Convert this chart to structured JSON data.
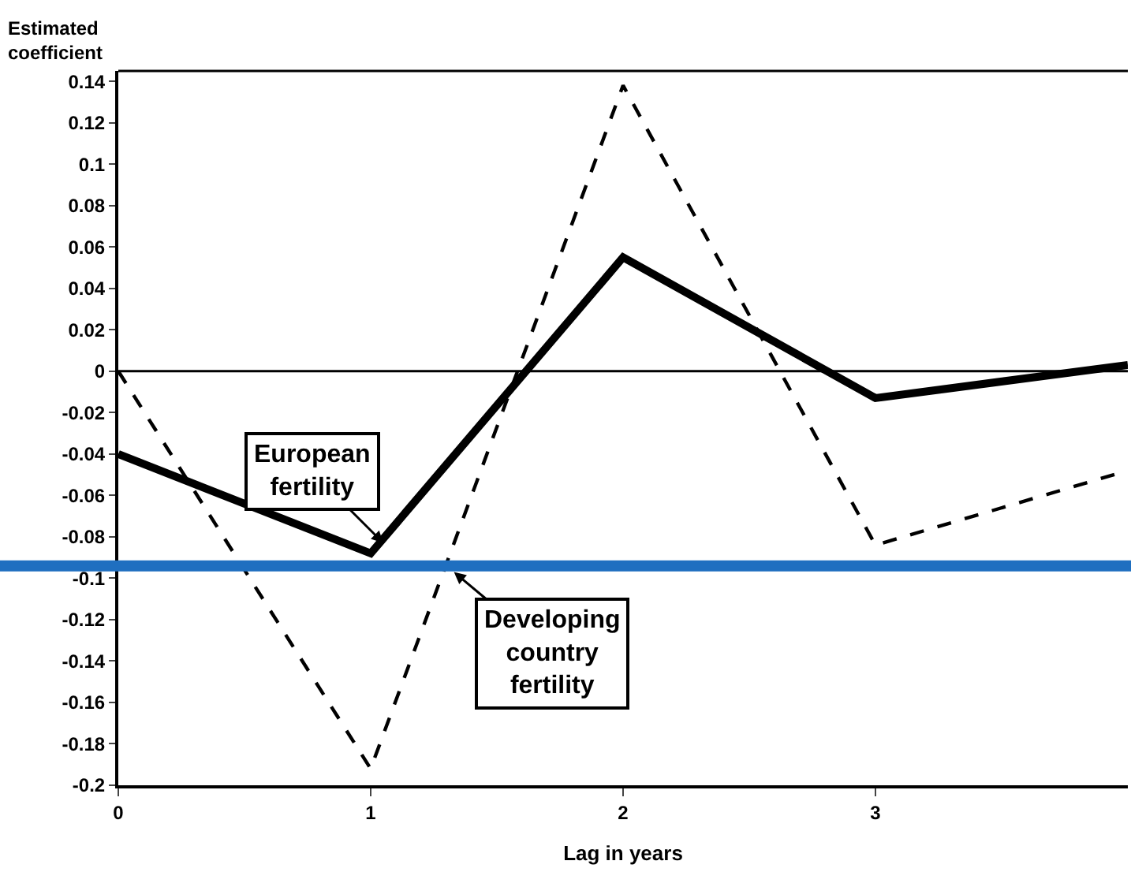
{
  "chart_data": {
    "type": "line",
    "ylabel": "Estimated coefficient",
    "xlabel": "Lag in years",
    "x": [
      0,
      1,
      2,
      3,
      4
    ],
    "series": [
      {
        "color": "#000000",
        "line_style": "solid",
        "values": [
          -0.04,
          -0.088,
          0.055,
          -0.013,
          0.003
        ]
      },
      {
        "color": "#000000",
        "line_style": "dashed",
        "values": [
          0,
          -0.192,
          0.138,
          -0.084,
          -0.048
        ]
      }
    ],
    "xlim": [
      0,
      4
    ],
    "xticks": [
      0,
      1,
      2,
      3
    ],
    "ylim": [
      -0.2,
      0.145
    ],
    "yticks": [
      -0.2,
      -0.18,
      -0.16,
      -0.14,
      -0.12,
      -0.1,
      -0.08,
      -0.06,
      -0.04,
      -0.02,
      0,
      0.02,
      0.04,
      0.06,
      0.08,
      0.1,
      0.12,
      0.14
    ],
    "ref_lines": [
      {
        "axis": "y",
        "value": 0,
        "color": "#000000"
      },
      {
        "axis": "y",
        "value": -0.094,
        "color": "#1f6fc0"
      }
    ],
    "annotations": [
      {
        "text": "European\nfertility",
        "x": 1.05,
        "y": -0.083
      },
      {
        "text": "Developing\ncountry\nfertility",
        "x": 1.33,
        "y": -0.097
      }
    ],
    "marker": "none"
  }
}
